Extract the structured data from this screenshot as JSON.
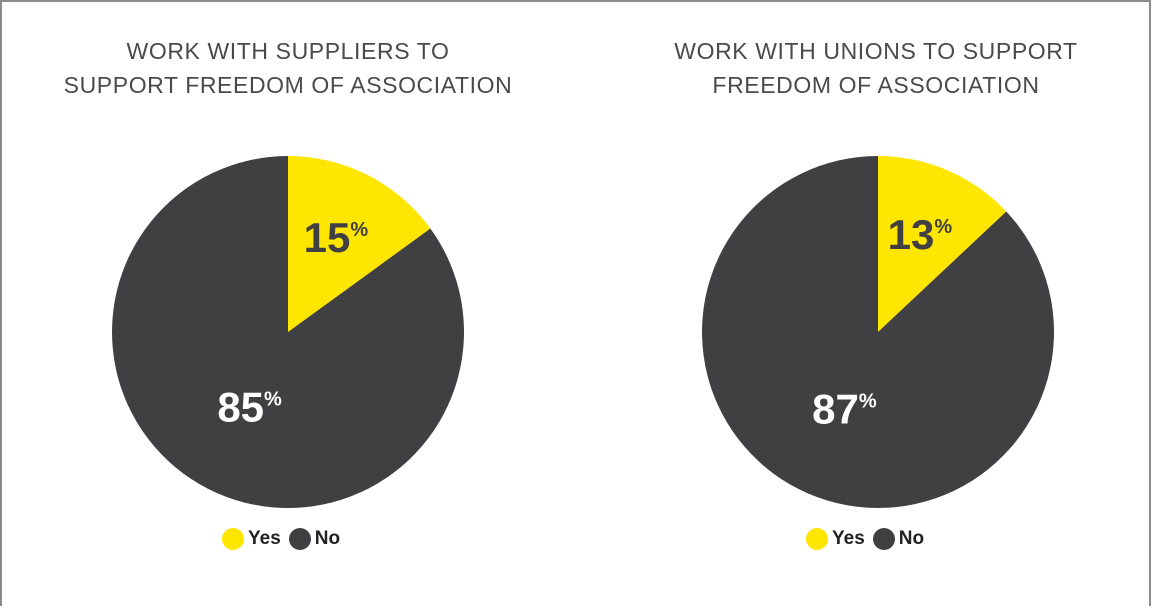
{
  "colors": {
    "yes": "#FFE600",
    "no": "#404042"
  },
  "chart_data": [
    {
      "type": "pie",
      "title": [
        "WORK WITH SUPPLIERS TO",
        "SUPPORT FREEDOM OF ASSOCIATION"
      ],
      "slices": [
        {
          "name": "Yes",
          "value": 15,
          "label_number": "15",
          "label_unit": "%"
        },
        {
          "name": "No",
          "value": 85,
          "label_number": "85",
          "label_unit": "%"
        }
      ],
      "legend": [
        "Yes",
        "No"
      ],
      "legend_position": "bottom"
    },
    {
      "type": "pie",
      "title": [
        "WORK WITH UNIONS TO SUPPORT",
        "FREEDOM OF ASSOCIATION"
      ],
      "slices": [
        {
          "name": "Yes",
          "value": 13,
          "label_number": "13",
          "label_unit": "%"
        },
        {
          "name": "No",
          "value": 87,
          "label_number": "87",
          "label_unit": "%"
        }
      ],
      "legend": [
        "Yes",
        "No"
      ],
      "legend_position": "bottom"
    }
  ]
}
